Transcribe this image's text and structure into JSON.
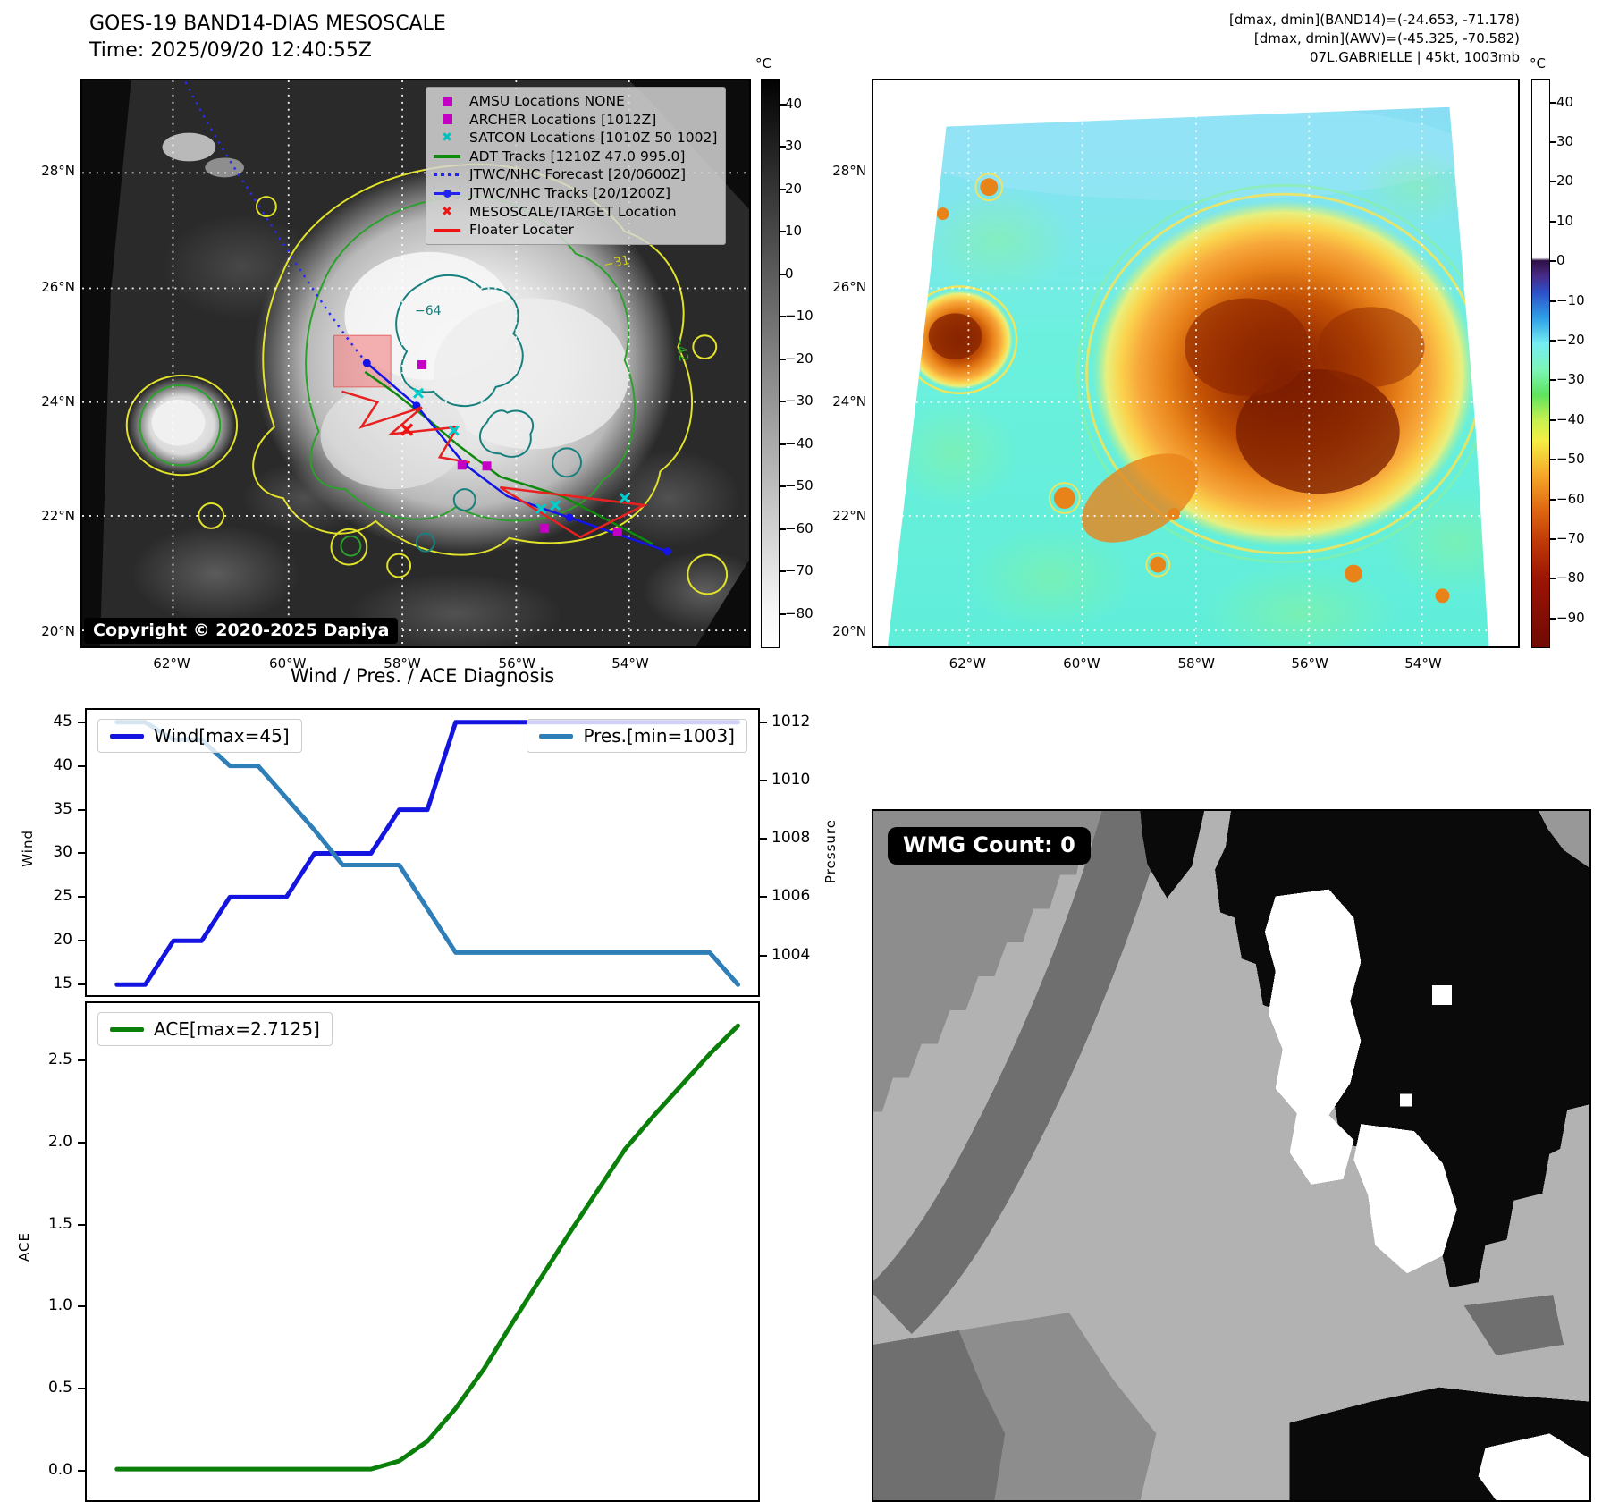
{
  "band14": {
    "title_line1": "GOES-19 BAND14-DIAS MESOSCALE",
    "title_line2": "Time: 2025/09/20 12:40:55Z",
    "copyright": "Copyright © 2020-2025 Dapiya",
    "colorbar_unit": "°C",
    "colorbar_ticks": [
      40,
      30,
      20,
      10,
      0,
      -10,
      -20,
      -30,
      -40,
      -50,
      -60,
      -70,
      -80
    ],
    "contour_labels": {
      "outer": "−31",
      "inner": "−64",
      "mid": "−42"
    },
    "legend": [
      {
        "label": "AMSU Locations NONE",
        "marker": "square",
        "color": "#c400c4"
      },
      {
        "label": "ARCHER Locations [1012Z]",
        "marker": "square",
        "color": "#c400c4"
      },
      {
        "label": "SATCON Locations [1010Z 50 1002]",
        "marker": "x",
        "color": "#00bfbf"
      },
      {
        "label": "ADT Tracks [1210Z 47.0 995.0]",
        "marker": "line",
        "color": "#0f8a0f"
      },
      {
        "label": "JTWC/NHC Forecast [20/0600Z]",
        "marker": "dotted",
        "color": "#2323ee"
      },
      {
        "label": "JTWC/NHC Tracks [20/1200Z]",
        "marker": "linedot",
        "color": "#2323ee"
      },
      {
        "label": "MESOSCALE/TARGET Location",
        "marker": "x",
        "color": "#ee1414"
      },
      {
        "label": "Floater Locater",
        "marker": "line",
        "color": "#ee1414"
      }
    ]
  },
  "awv": {
    "header_line1": "[dmax, dmin](BAND14)=(-24.653, -71.178)",
    "header_line2": "[dmax, dmin](AWV)=(-45.325, -70.582)",
    "header_line3": "07L.GABRIELLE | 45kt, 1003mb",
    "colorbar_unit": "°C",
    "colorbar_ticks": [
      40,
      30,
      20,
      10,
      0,
      -10,
      -20,
      -30,
      -40,
      -50,
      -60,
      -70,
      -80,
      -90
    ]
  },
  "maps": {
    "x_ticks": [
      "62°W",
      "60°W",
      "58°W",
      "56°W",
      "54°W"
    ],
    "y_ticks": [
      "28°N",
      "26°N",
      "24°N",
      "22°N",
      "20°N"
    ]
  },
  "wmg": {
    "count_label": "WMG Count: 0"
  },
  "chart_data": [
    {
      "type": "line",
      "title": "Wind / Pres. / ACE Diagnosis",
      "x": [
        0,
        1,
        2,
        3,
        4,
        5,
        6,
        7,
        8,
        9,
        10,
        11,
        12,
        13,
        14,
        15,
        16,
        17,
        18,
        19,
        20,
        21,
        22
      ],
      "series": [
        {
          "name": "Wind[max=45]",
          "axis": "left",
          "color": "#1414e0",
          "values": [
            15,
            15,
            20,
            20,
            25,
            25,
            25,
            30,
            30,
            30,
            35,
            35,
            45,
            45,
            45,
            45,
            45,
            45,
            45,
            45,
            45,
            45,
            45
          ]
        },
        {
          "name": "Pres.[min=1003]",
          "axis": "right",
          "color": "#2e7eb8",
          "values": [
            1012,
            1012,
            1011.4,
            1011.4,
            1010.5,
            1010.5,
            1009.4,
            1008.3,
            1007.1,
            1007.1,
            1007.1,
            1005.6,
            1004.1,
            1004.1,
            1004.1,
            1004.1,
            1004.1,
            1004.1,
            1004.1,
            1004.1,
            1004.1,
            1004.1,
            1003
          ]
        }
      ],
      "ylabel_left": "Wind",
      "ylabel_right": "Pressure",
      "yticks_left": [
        45,
        40,
        35,
        30,
        25,
        20,
        15
      ],
      "yticks_right": [
        1012,
        1010,
        1008,
        1006,
        1004
      ],
      "ylim_left": [
        13.8,
        46.4
      ],
      "ylim_right": [
        1002.64,
        1012.42
      ],
      "legend_position": "upper-left-and-upper-right",
      "grid": false
    },
    {
      "type": "line",
      "x": [
        0,
        1,
        2,
        3,
        4,
        5,
        6,
        7,
        8,
        9,
        10,
        11,
        12,
        13,
        14,
        15,
        16,
        17,
        18,
        19,
        20,
        21,
        22
      ],
      "series": [
        {
          "name": "ACE[max=2.7125]",
          "axis": "left",
          "color": "#0a800a",
          "values": [
            0.01,
            0.01,
            0.01,
            0.01,
            0.01,
            0.01,
            0.01,
            0.01,
            0.01,
            0.01,
            0.06,
            0.18,
            0.38,
            0.62,
            0.9,
            1.17,
            1.44,
            1.7,
            1.96,
            2.16,
            2.35,
            2.54,
            2.7125
          ]
        }
      ],
      "ylabel": "ACE",
      "yticks": [
        2.5,
        2.0,
        1.5,
        1.0,
        0.5,
        0.0
      ],
      "ylim": [
        -0.18,
        2.85
      ],
      "legend_position": "upper-left",
      "grid": false
    }
  ]
}
